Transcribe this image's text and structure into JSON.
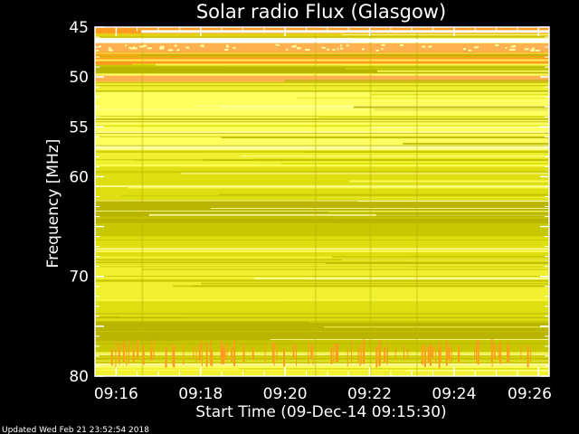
{
  "chart_data": {
    "type": "heatmap",
    "title": "Solar radio Flux (Glasgow)",
    "xlabel": "Start Time (09-Dec-14 09:15:30)",
    "ylabel": "Frequency [MHz]",
    "x_ticks": [
      "09:16",
      "09:18",
      "09:20",
      "09:22",
      "09:24",
      "09:26"
    ],
    "x_tick_minutes": [
      16,
      18,
      20,
      22,
      24,
      26
    ],
    "x_range_minutes": [
      15.5,
      26.25
    ],
    "y_ticks": [
      45,
      50,
      55,
      60,
      65,
      70,
      75,
      80
    ],
    "y_tick_labels": [
      "45",
      "50",
      "55",
      "60",
      "",
      "70",
      "",
      "80"
    ],
    "ylim": [
      45,
      80
    ],
    "y_inverted": true,
    "colormap": [
      "#b8b400",
      "#c8c800",
      "#dede10",
      "#f0f030",
      "#ffff60",
      "#ffffa0",
      "#ff9a20",
      "#ffb050",
      "#ffffff"
    ],
    "frequency_bands": [
      {
        "from": 45.0,
        "to": 46.0,
        "level": 6
      },
      {
        "from": 46.0,
        "to": 46.6,
        "level": 8
      },
      {
        "from": 46.6,
        "to": 47.5,
        "level": 7
      },
      {
        "from": 47.5,
        "to": 48.8,
        "level": 6
      },
      {
        "from": 48.8,
        "to": 49.7,
        "level": 0
      },
      {
        "from": 49.7,
        "to": 50.5,
        "level": 7
      },
      {
        "from": 50.5,
        "to": 51.5,
        "level": 3
      },
      {
        "from": 51.5,
        "to": 53.0,
        "level": 4
      },
      {
        "from": 53.0,
        "to": 56.8,
        "level": 4
      },
      {
        "from": 56.8,
        "to": 57.3,
        "level": 5
      },
      {
        "from": 57.3,
        "to": 59.0,
        "level": 3
      },
      {
        "from": 59.0,
        "to": 62.5,
        "level": 2
      },
      {
        "from": 62.5,
        "to": 64.7,
        "level": 0
      },
      {
        "from": 64.7,
        "to": 66.0,
        "level": 1
      },
      {
        "from": 66.0,
        "to": 68.0,
        "level": 2
      },
      {
        "from": 68.0,
        "to": 72.5,
        "level": 3
      },
      {
        "from": 72.5,
        "to": 74.5,
        "level": 2
      },
      {
        "from": 74.5,
        "to": 76.5,
        "level": 0
      },
      {
        "from": 76.5,
        "to": 79.0,
        "level": 1
      },
      {
        "from": 79.0,
        "to": 80.0,
        "level": 3
      }
    ],
    "legend": "none",
    "grid": false
  },
  "footer": {
    "updated_text": "Updated Wed Feb 21 23:52:54 2018"
  }
}
